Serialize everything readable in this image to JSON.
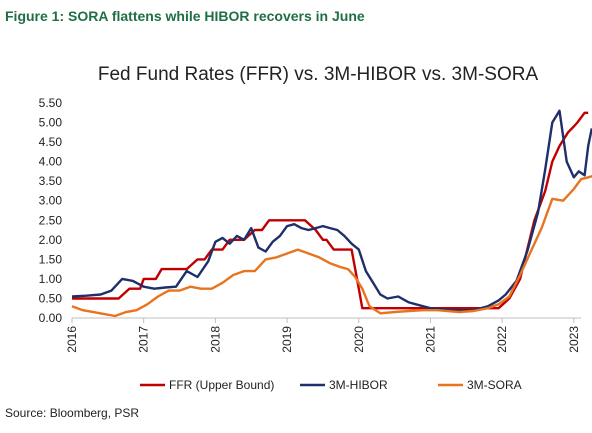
{
  "figure": {
    "title": "Figure 1: SORA flattens while HIBOR recovers in June",
    "source": "Source: Bloomberg, PSR"
  },
  "chart_data": {
    "type": "line",
    "title": "Fed Fund Rates (FFR) vs. 3M-HIBOR vs. 3M-SORA",
    "xlabel": "",
    "ylabel": "",
    "xlim": [
      2016,
      2023.1
    ],
    "ylim": [
      0,
      5.5
    ],
    "grid": false,
    "legend_position": "bottom",
    "x_ticks": [
      "2016",
      "2017",
      "2018",
      "2019",
      "2020",
      "2021",
      "2022",
      "2023"
    ],
    "y_ticks": [
      "0.00",
      "0.50",
      "1.00",
      "1.50",
      "2.00",
      "2.50",
      "3.00",
      "3.50",
      "4.00",
      "4.50",
      "5.00",
      "5.50"
    ],
    "series": [
      {
        "name": "FFR (Upper Bound)",
        "color": "#c00000",
        "points": [
          [
            2016.0,
            0.5
          ],
          [
            2016.5,
            0.5
          ],
          [
            2016.65,
            0.5
          ],
          [
            2016.8,
            0.75
          ],
          [
            2016.95,
            0.75
          ],
          [
            2017.0,
            1.0
          ],
          [
            2017.17,
            1.0
          ],
          [
            2017.25,
            1.25
          ],
          [
            2017.45,
            1.25
          ],
          [
            2017.6,
            1.25
          ],
          [
            2017.75,
            1.5
          ],
          [
            2017.85,
            1.5
          ],
          [
            2017.95,
            1.75
          ],
          [
            2018.1,
            1.75
          ],
          [
            2018.2,
            2.0
          ],
          [
            2018.4,
            2.0
          ],
          [
            2018.55,
            2.25
          ],
          [
            2018.65,
            2.25
          ],
          [
            2018.75,
            2.5
          ],
          [
            2018.9,
            2.5
          ],
          [
            2019.0,
            2.5
          ],
          [
            2019.15,
            2.5
          ],
          [
            2019.25,
            2.5
          ],
          [
            2019.4,
            2.25
          ],
          [
            2019.5,
            2.0
          ],
          [
            2019.55,
            2.0
          ],
          [
            2019.65,
            1.75
          ],
          [
            2019.8,
            1.75
          ],
          [
            2019.9,
            1.75
          ],
          [
            2019.95,
            1.25
          ],
          [
            2020.0,
            0.75
          ],
          [
            2020.05,
            0.25
          ],
          [
            2020.5,
            0.25
          ],
          [
            2021.0,
            0.25
          ],
          [
            2021.5,
            0.25
          ],
          [
            2021.8,
            0.25
          ],
          [
            2021.95,
            0.25
          ],
          [
            2022.1,
            0.5
          ],
          [
            2022.25,
            1.0
          ],
          [
            2022.35,
            1.75
          ],
          [
            2022.45,
            2.5
          ],
          [
            2022.6,
            3.25
          ],
          [
            2022.7,
            4.0
          ],
          [
            2022.8,
            4.4
          ],
          [
            2022.92,
            4.75
          ],
          [
            2023.0,
            4.9
          ],
          [
            2023.05,
            5.0
          ],
          [
            2023.15,
            5.25
          ],
          [
            2023.2,
            5.25
          ]
        ]
      },
      {
        "name": "3M-HIBOR",
        "color": "#1f2f6b",
        "points": [
          [
            2016.0,
            0.55
          ],
          [
            2016.2,
            0.57
          ],
          [
            2016.4,
            0.6
          ],
          [
            2016.55,
            0.7
          ],
          [
            2016.7,
            1.0
          ],
          [
            2016.85,
            0.95
          ],
          [
            2017.0,
            0.8
          ],
          [
            2017.15,
            0.75
          ],
          [
            2017.3,
            0.78
          ],
          [
            2017.45,
            0.8
          ],
          [
            2017.6,
            1.2
          ],
          [
            2017.75,
            1.05
          ],
          [
            2017.9,
            1.45
          ],
          [
            2018.0,
            1.95
          ],
          [
            2018.1,
            2.05
          ],
          [
            2018.2,
            1.9
          ],
          [
            2018.3,
            2.1
          ],
          [
            2018.4,
            2.0
          ],
          [
            2018.5,
            2.3
          ],
          [
            2018.6,
            1.8
          ],
          [
            2018.7,
            1.7
          ],
          [
            2018.8,
            1.95
          ],
          [
            2018.9,
            2.1
          ],
          [
            2019.0,
            2.35
          ],
          [
            2019.1,
            2.4
          ],
          [
            2019.2,
            2.3
          ],
          [
            2019.3,
            2.25
          ],
          [
            2019.4,
            2.3
          ],
          [
            2019.5,
            2.35
          ],
          [
            2019.6,
            2.3
          ],
          [
            2019.7,
            2.25
          ],
          [
            2019.8,
            2.1
          ],
          [
            2019.9,
            1.9
          ],
          [
            2020.0,
            1.75
          ],
          [
            2020.1,
            1.2
          ],
          [
            2020.2,
            0.9
          ],
          [
            2020.3,
            0.6
          ],
          [
            2020.4,
            0.5
          ],
          [
            2020.55,
            0.55
          ],
          [
            2020.7,
            0.4
          ],
          [
            2020.9,
            0.3
          ],
          [
            2021.0,
            0.25
          ],
          [
            2021.3,
            0.2
          ],
          [
            2021.6,
            0.2
          ],
          [
            2021.8,
            0.3
          ],
          [
            2021.95,
            0.45
          ],
          [
            2022.05,
            0.6
          ],
          [
            2022.2,
            0.95
          ],
          [
            2022.35,
            1.7
          ],
          [
            2022.5,
            2.7
          ],
          [
            2022.6,
            3.8
          ],
          [
            2022.7,
            5.0
          ],
          [
            2022.8,
            5.3
          ],
          [
            2022.9,
            4.0
          ],
          [
            2023.0,
            3.6
          ],
          [
            2023.07,
            3.75
          ],
          [
            2023.15,
            3.65
          ],
          [
            2023.2,
            4.4
          ],
          [
            2023.25,
            4.85
          ]
        ]
      },
      {
        "name": "3M-SORA",
        "color": "#e9731e",
        "points": [
          [
            2016.0,
            0.3
          ],
          [
            2016.15,
            0.2
          ],
          [
            2016.3,
            0.15
          ],
          [
            2016.45,
            0.1
          ],
          [
            2016.6,
            0.05
          ],
          [
            2016.75,
            0.15
          ],
          [
            2016.9,
            0.2
          ],
          [
            2017.05,
            0.35
          ],
          [
            2017.2,
            0.55
          ],
          [
            2017.35,
            0.7
          ],
          [
            2017.5,
            0.7
          ],
          [
            2017.65,
            0.8
          ],
          [
            2017.8,
            0.75
          ],
          [
            2017.95,
            0.75
          ],
          [
            2018.1,
            0.9
          ],
          [
            2018.25,
            1.1
          ],
          [
            2018.4,
            1.2
          ],
          [
            2018.55,
            1.2
          ],
          [
            2018.7,
            1.5
          ],
          [
            2018.85,
            1.55
          ],
          [
            2019.0,
            1.65
          ],
          [
            2019.15,
            1.75
          ],
          [
            2019.3,
            1.65
          ],
          [
            2019.45,
            1.55
          ],
          [
            2019.6,
            1.4
          ],
          [
            2019.75,
            1.3
          ],
          [
            2019.85,
            1.25
          ],
          [
            2019.95,
            1.05
          ],
          [
            2020.05,
            0.75
          ],
          [
            2020.15,
            0.3
          ],
          [
            2020.3,
            0.12
          ],
          [
            2020.5,
            0.15
          ],
          [
            2020.7,
            0.18
          ],
          [
            2020.9,
            0.2
          ],
          [
            2021.1,
            0.2
          ],
          [
            2021.4,
            0.15
          ],
          [
            2021.6,
            0.18
          ],
          [
            2021.8,
            0.25
          ],
          [
            2021.95,
            0.35
          ],
          [
            2022.1,
            0.55
          ],
          [
            2022.25,
            1.1
          ],
          [
            2022.4,
            1.7
          ],
          [
            2022.55,
            2.3
          ],
          [
            2022.7,
            3.05
          ],
          [
            2022.85,
            3.0
          ],
          [
            2023.0,
            3.3
          ],
          [
            2023.1,
            3.55
          ],
          [
            2023.2,
            3.6
          ],
          [
            2023.3,
            3.65
          ]
        ]
      }
    ]
  }
}
